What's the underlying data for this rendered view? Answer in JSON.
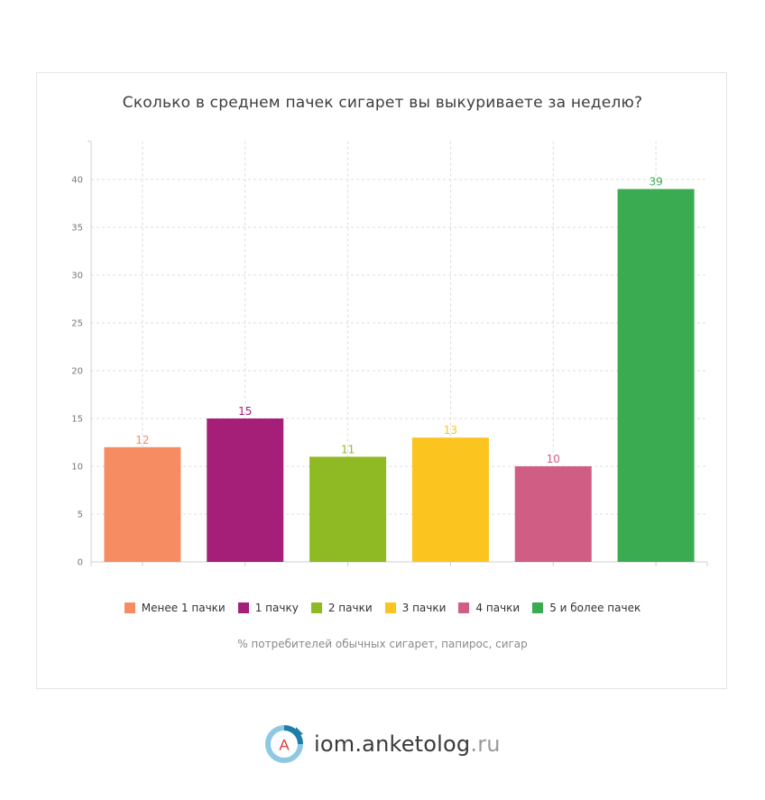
{
  "chart_data": {
    "type": "bar",
    "title": "Сколько в среднем пачек сигарет вы выкуриваете за неделю?",
    "categories": [
      "Менее 1 пачки",
      "1 пачку",
      "2 пачки",
      "3 пачки",
      "4 пачки",
      "5 и более пачек"
    ],
    "values": [
      12,
      15,
      11,
      13,
      10,
      39
    ],
    "colors": [
      "#f68d62",
      "#a51f78",
      "#8fba23",
      "#fbc41e",
      "#d05d84",
      "#3bab52"
    ],
    "ylim": [
      0,
      44
    ],
    "yticks": [
      0,
      5,
      10,
      15,
      20,
      25,
      30,
      35,
      40
    ],
    "grid": true,
    "legend_position": "bottom",
    "caption": "% потребителей обычных сигарет, папирос, сигар"
  },
  "brand": {
    "logo_letter": "A",
    "name": "iom.anketolog",
    "tld": ".ru"
  }
}
